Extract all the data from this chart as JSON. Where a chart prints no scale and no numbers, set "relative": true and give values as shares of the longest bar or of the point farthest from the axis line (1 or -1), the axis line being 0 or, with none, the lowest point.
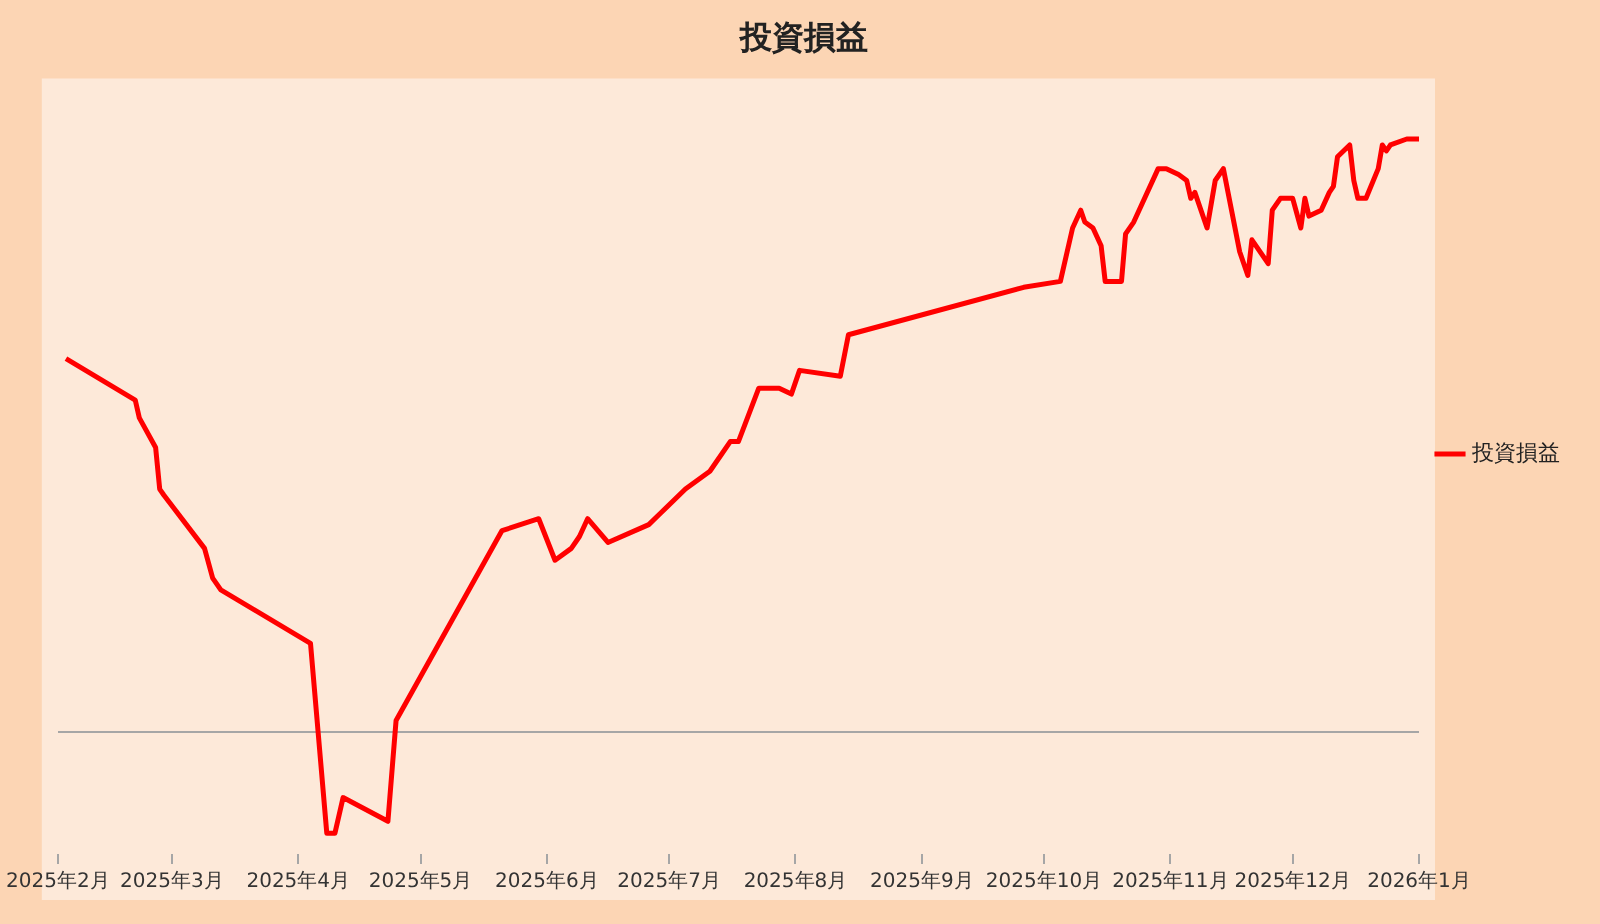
{
  "chart_data": {
    "type": "line",
    "title": "投資損益",
    "relative": true,
    "legend": "right",
    "xlim": [
      "2025-02-01",
      "2026-01-01"
    ],
    "xticks": [
      {
        "value": "2025-02-01",
        "label": "2025年2月"
      },
      {
        "value": "2025-03-01",
        "label": "2025年3月"
      },
      {
        "value": "2025-04-01",
        "label": "2025年4月"
      },
      {
        "value": "2025-05-01",
        "label": "2025年5月"
      },
      {
        "value": "2025-06-01",
        "label": "2025年6月"
      },
      {
        "value": "2025-07-01",
        "label": "2025年7月"
      },
      {
        "value": "2025-08-01",
        "label": "2025年8月"
      },
      {
        "value": "2025-09-01",
        "label": "2025年9月"
      },
      {
        "value": "2025-10-01",
        "label": "2025年10月"
      },
      {
        "value": "2025-11-01",
        "label": "2025年11月"
      },
      {
        "value": "2025-12-01",
        "label": "2025年12月"
      },
      {
        "value": "2026-01-01",
        "label": "2026年1月"
      }
    ],
    "x": [
      "2025-02-03",
      "2025-02-20",
      "2025-02-21",
      "2025-02-25",
      "2025-02-26",
      "2025-02-27",
      "2025-03-09",
      "2025-03-11",
      "2025-03-13",
      "2025-04-04",
      "2025-04-08",
      "2025-04-10",
      "2025-04-12",
      "2025-04-23",
      "2025-04-25",
      "2025-05-21",
      "2025-05-30",
      "2025-06-03",
      "2025-06-07",
      "2025-06-09",
      "2025-06-11",
      "2025-06-16",
      "2025-06-26",
      "2025-06-29",
      "2025-07-05",
      "2025-07-11",
      "2025-07-16",
      "2025-07-18",
      "2025-07-23",
      "2025-07-28",
      "2025-07-31",
      "2025-08-02",
      "2025-08-12",
      "2025-08-14",
      "2025-09-26",
      "2025-10-05",
      "2025-10-08",
      "2025-10-10",
      "2025-10-11",
      "2025-10-13",
      "2025-10-15",
      "2025-10-16",
      "2025-10-17",
      "2025-10-20",
      "2025-10-21",
      "2025-10-23",
      "2025-10-29",
      "2025-10-31",
      "2025-11-03",
      "2025-11-05",
      "2025-11-06",
      "2025-11-07",
      "2025-11-10",
      "2025-11-12",
      "2025-11-14",
      "2025-11-16",
      "2025-11-18",
      "2025-11-20",
      "2025-11-21",
      "2025-11-25",
      "2025-11-26",
      "2025-11-28",
      "2025-12-01",
      "2025-12-03",
      "2025-12-04",
      "2025-12-05",
      "2025-12-08",
      "2025-12-10",
      "2025-12-11",
      "2025-12-12",
      "2025-12-15",
      "2025-12-16",
      "2025-12-17",
      "2025-12-19",
      "2025-12-22",
      "2025-12-23",
      "2025-12-24",
      "2025-12-25",
      "2025-12-29",
      "2026-01-01"
    ],
    "series": [
      {
        "name": "投資損益",
        "color": "#ff0000",
        "values": [
          0.63,
          0.56,
          0.53,
          0.48,
          0.41,
          0.4,
          0.31,
          0.26,
          0.24,
          0.15,
          -0.17,
          -0.17,
          -0.11,
          -0.15,
          0.02,
          0.34,
          0.36,
          0.29,
          0.31,
          0.33,
          0.36,
          0.32,
          0.35,
          0.37,
          0.41,
          0.44,
          0.49,
          0.49,
          0.58,
          0.58,
          0.57,
          0.61,
          0.6,
          0.67,
          0.75,
          0.76,
          0.85,
          0.88,
          0.86,
          0.85,
          0.82,
          0.76,
          0.76,
          0.76,
          0.84,
          0.86,
          0.95,
          0.95,
          0.94,
          0.93,
          0.9,
          0.91,
          0.85,
          0.93,
          0.95,
          0.88,
          0.81,
          0.77,
          0.83,
          0.79,
          0.88,
          0.9,
          0.9,
          0.85,
          0.9,
          0.87,
          0.88,
          0.91,
          0.92,
          0.97,
          0.99,
          0.93,
          0.9,
          0.9,
          0.95,
          0.99,
          0.98,
          0.99,
          1,
          1
        ]
      }
    ]
  }
}
